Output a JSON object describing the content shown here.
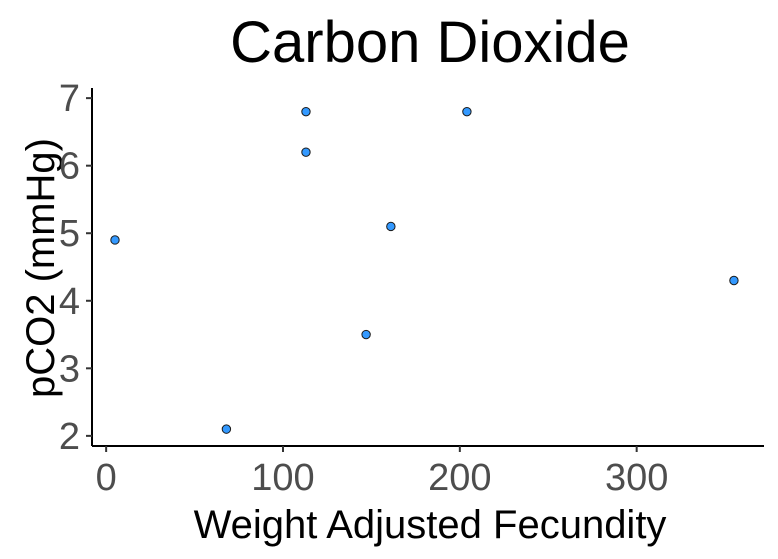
{
  "chart_data": {
    "type": "scatter",
    "title": "Carbon Dioxide",
    "xlabel": "Weight Adjusted Fecundity",
    "ylabel": "pCO2 (mmHg)",
    "xlim": [
      -8,
      372
    ],
    "ylim": [
      1.85,
      7.15
    ],
    "x_ticks": [
      0,
      100,
      200,
      300
    ],
    "y_ticks": [
      2,
      3,
      4,
      5,
      6,
      7
    ],
    "grid": false,
    "point_color": "#3399ff",
    "points": [
      {
        "x": 5,
        "y": 4.9
      },
      {
        "x": 68,
        "y": 2.1
      },
      {
        "x": 113,
        "y": 6.8
      },
      {
        "x": 113,
        "y": 6.2
      },
      {
        "x": 147,
        "y": 3.5
      },
      {
        "x": 161,
        "y": 5.1
      },
      {
        "x": 204,
        "y": 6.8
      },
      {
        "x": 355,
        "y": 4.3
      }
    ]
  }
}
